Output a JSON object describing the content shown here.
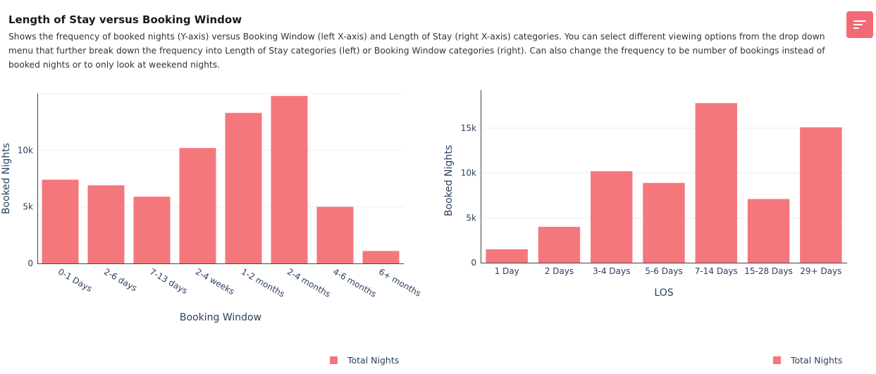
{
  "header": {
    "title": "Length of Stay versus Booking Window",
    "description": "Shows the frequency of booked nights (Y-axis) versus Booking Window (left X-axis) and Length of Stay (right X-axis) categories. You can select different viewing options from the drop down menu that further break down the frequency into Length of Stay categories (left) or Booking Window categories (right). Can also change the frequency to be number of bookings instead of booked nights or to only look at weekend nights."
  },
  "menu": {
    "icon": "sort-menu-icon"
  },
  "colors": {
    "bar": "#f4777c",
    "accent_button": "#f06b74",
    "grid": "#eeeeee",
    "axis_text": "#2a3f5f"
  },
  "chart_data": [
    {
      "type": "bar",
      "categories": [
        "0-1 Days",
        "2-6 days",
        "7-13 days",
        "2-4 weeks",
        "1-2 months",
        "2-4 months",
        "4-6 months",
        "6+ months"
      ],
      "series": [
        {
          "name": "Total Nights",
          "values": [
            7400,
            6900,
            5900,
            10200,
            13300,
            14800,
            5000,
            1100
          ]
        }
      ],
      "xlabel": "Booking Window",
      "ylabel": "Booked Nights",
      "ylim": [
        0,
        15000
      ],
      "ytick_values": [
        0,
        5000,
        10000
      ],
      "ytick_labels": [
        "0",
        "5k",
        "10k"
      ],
      "grid": true,
      "legend": "bottom"
    },
    {
      "type": "bar",
      "categories": [
        "1 Day",
        "2 Days",
        "3-4 Days",
        "5-6 Days",
        "7-14 Days",
        "15-28 Days",
        "29+ Days"
      ],
      "series": [
        {
          "name": "Total Nights",
          "values": [
            1500,
            4000,
            10200,
            8900,
            17800,
            7100,
            15100
          ]
        }
      ],
      "xlabel": "LOS",
      "ylabel": "Booked Nights",
      "ylim": [
        0,
        18300
      ],
      "ytick_values": [
        0,
        5000,
        10000,
        15000
      ],
      "ytick_labels": [
        "0",
        "5k",
        "10k",
        "15k"
      ],
      "grid": true,
      "legend": "bottom-right"
    }
  ]
}
